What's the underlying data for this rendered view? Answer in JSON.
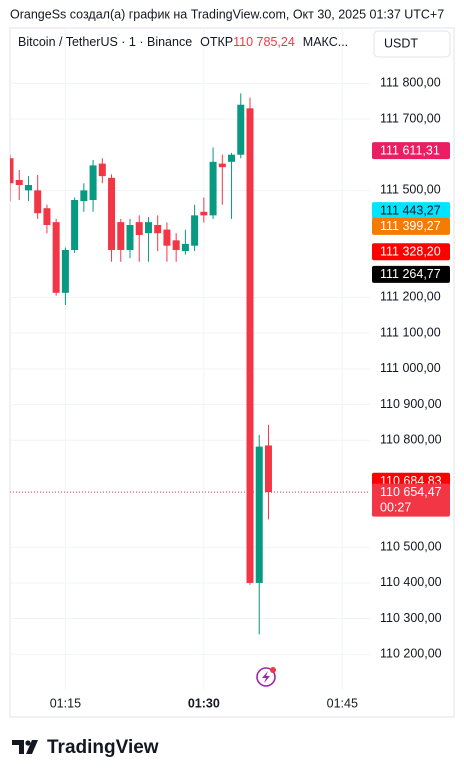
{
  "header": {
    "attribution": "OrangeSs создал(а) график на TradingView.com, Окт 30, 2025 01:37 UTC+7",
    "brand": "TradingView"
  },
  "chart_data": {
    "type": "candlestick",
    "symbol": "Bitcoin / TetherUS · 1 · Binance",
    "open_caption": "ОТКР",
    "open_value": "110 785,24",
    "more": "МАКС...",
    "currency": "USDT",
    "x": [
      "01:09",
      "01:10",
      "01:11",
      "01:12",
      "01:13",
      "01:14",
      "01:15",
      "01:16",
      "01:17",
      "01:18",
      "01:19",
      "01:20",
      "01:21",
      "01:22",
      "01:23",
      "01:24",
      "01:25",
      "01:26",
      "01:27",
      "01:28",
      "01:29",
      "01:30",
      "01:31",
      "01:32",
      "01:33",
      "01:34",
      "01:35",
      "01:36",
      "01:37"
    ],
    "open": [
      111590,
      111529,
      111500,
      111500,
      111450,
      111411,
      111213,
      111333,
      111470,
      111473,
      111575,
      111535,
      111411,
      111333,
      111411,
      111380,
      111403,
      111390,
      111360,
      111330,
      111345,
      111440,
      111430,
      111575,
      111580,
      111600,
      111730,
      110400,
      110785.24
    ],
    "high": [
      111600,
      111557,
      111540,
      111543,
      111460,
      111420,
      111340,
      111480,
      111520,
      111585,
      111590,
      111545,
      111420,
      111420,
      111430,
      111425,
      111430,
      111410,
      111380,
      111390,
      111460,
      111480,
      111620,
      111600,
      111605,
      111772,
      111760,
      110815,
      110843
    ],
    "low": [
      111470,
      111473,
      111470,
      111420,
      111380,
      111205,
      111179,
      111325,
      111440,
      111440,
      111520,
      111300,
      111300,
      111310,
      111300,
      111300,
      111330,
      111300,
      111300,
      111320,
      111330,
      111410,
      111420,
      111460,
      111420,
      111590,
      110395,
      110256,
      110578
    ],
    "close": [
      111520,
      111515,
      111515,
      111436,
      111403,
      111213,
      111333,
      111473,
      111500,
      111570,
      111540,
      111333,
      111333,
      111403,
      111375,
      111411,
      111380,
      111345,
      111333,
      111350,
      111430,
      111430,
      111580,
      111565,
      111600,
      111740,
      110400,
      110782,
      110654.47
    ],
    "up_color": "#089981",
    "down_color": "#f23645",
    "xlim": [
      "01:09",
      "01:48"
    ],
    "xticks": [
      "01:15",
      "01:30",
      "01:45"
    ],
    "ylim": [
      110100,
      111955
    ],
    "yticks": [
      {
        "value": 111800,
        "label": "111 800,00"
      },
      {
        "value": 111700,
        "label": "111 700,00"
      },
      {
        "value": 111500,
        "label": "111 500,00"
      },
      {
        "value": 111200,
        "label": "111 200,00"
      },
      {
        "value": 111100,
        "label": "111 100,00"
      },
      {
        "value": 111000,
        "label": "111 000,00"
      },
      {
        "value": 110900,
        "label": "110 900,00"
      },
      {
        "value": 110800,
        "label": "110 800,00"
      },
      {
        "value": 110500,
        "label": "110 500,00"
      },
      {
        "value": 110400,
        "label": "110 400,00"
      },
      {
        "value": 110300,
        "label": "110 300,00"
      },
      {
        "value": 110200,
        "label": "110 200,00"
      }
    ],
    "grid": true,
    "price_labels": [
      {
        "value": 111611.31,
        "label": "111 611,31",
        "color": "#e91e63",
        "text_color": "#ffffff"
      },
      {
        "value": 111443.27,
        "label": "111 443,27",
        "color": "#00e5ff",
        "text_color": "#131722"
      },
      {
        "value": 111399.27,
        "label": "111 399,27",
        "color": "#f57c00",
        "text_color": "#ffffff"
      },
      {
        "value": 111328.2,
        "label": "111 328,20",
        "color": "#ff0000",
        "text_color": "#ffffff"
      },
      {
        "value": 111264.77,
        "label": "111 264,77",
        "color": "#000000",
        "text_color": "#ffffff"
      },
      {
        "value": 110684.83,
        "label": "110 684,83",
        "color": "#ff0000",
        "text_color": "#ffffff"
      }
    ],
    "last_price": {
      "value": 110654.47,
      "label": "110 654,47",
      "countdown": "00:27",
      "color": "#f23645"
    }
  }
}
